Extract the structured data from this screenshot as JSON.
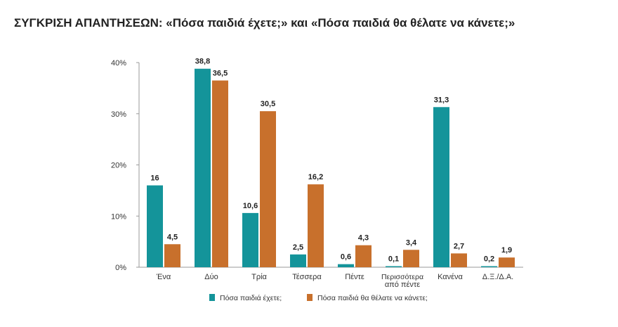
{
  "chart_data": {
    "type": "bar",
    "title": "ΣΥΓΚΡΙΣΗ ΑΠΑΝΤΗΣΕΩΝ: «Πόσα παιδιά έχετε;» και «Πόσα παιδιά θα θέλατε να κάνετε;»",
    "xlabel": "",
    "ylabel": "",
    "ylim": [
      0,
      40
    ],
    "yticks": [
      "0%",
      "10%",
      "20%",
      "30%",
      "40%"
    ],
    "grid": false,
    "legend_position": "bottom",
    "categories": [
      [
        "Ένα"
      ],
      [
        "Δύο"
      ],
      [
        "Τρία"
      ],
      [
        "Τέσσερα"
      ],
      [
        "Πέντε"
      ],
      [
        "Περισσότερα",
        "από πέντε"
      ],
      [
        "Κανένα"
      ],
      [
        "Δ.Ξ./Δ.Α."
      ]
    ],
    "series": [
      {
        "name": "Πόσα παιδιά έχετε;",
        "color": "#14949a",
        "values": [
          16,
          38.8,
          10.6,
          2.5,
          0.6,
          0.1,
          31.3,
          0.2
        ],
        "labels": [
          "16",
          "38,8",
          "10,6",
          "2,5",
          "0,6",
          "0,1",
          "31,3",
          "0,2"
        ]
      },
      {
        "name": "Πόσα παιδιά θα θέλατε να κάνετε;",
        "color": "#c8702c",
        "values": [
          4.5,
          36.5,
          30.5,
          16.2,
          4.3,
          3.4,
          2.7,
          1.9
        ],
        "labels": [
          "4,5",
          "36,5",
          "30,5",
          "16,2",
          "4,3",
          "3,4",
          "2,7",
          "1,9"
        ]
      }
    ]
  }
}
